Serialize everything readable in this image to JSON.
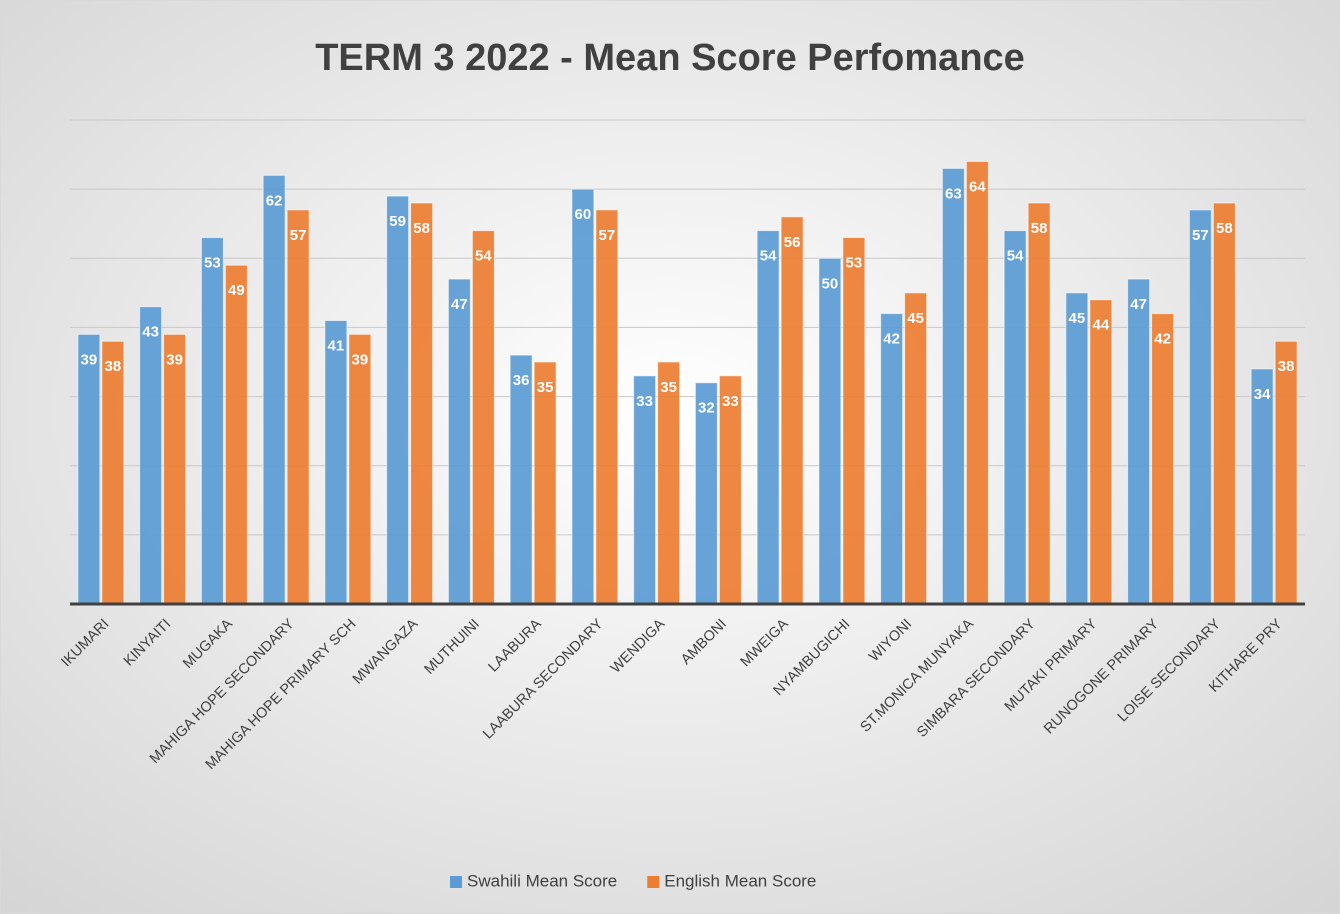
{
  "chart_data": {
    "type": "bar",
    "title": "TERM 3 2022 -  Mean Score Perfomance",
    "categories": [
      "IKUMARI",
      "KINYAITI",
      "MUGAKA",
      "MAHIGA HOPE SECONDARY",
      "MAHIGA HOPE PRIMARY SCH",
      "MWANGAZA",
      "MUTHUINI",
      "LAABURA",
      "LAABURA SECONDARY",
      "WENDIGA",
      "AMBONI",
      "MWEIGA",
      "NYAMBUGICHI",
      "WIYONI",
      "ST.MONICA MUNYAKA",
      "SIMBARA SECONDARY",
      "MUTAKI PRIMARY",
      "RUNOGONE PRIMARY",
      "LOISE SECONDARY",
      "KITHARE PRY"
    ],
    "series": [
      {
        "name": "Swahili Mean Score",
        "color": "#5b9bd5",
        "values": [
          39,
          43,
          53,
          62,
          41,
          59,
          47,
          36,
          60,
          33,
          32,
          54,
          50,
          42,
          63,
          54,
          45,
          47,
          57,
          34
        ]
      },
      {
        "name": "English Mean Score",
        "color": "#ed7d31",
        "values": [
          38,
          39,
          49,
          57,
          39,
          58,
          54,
          35,
          57,
          35,
          33,
          56,
          53,
          45,
          64,
          58,
          44,
          42,
          58,
          38
        ]
      }
    ],
    "ylim": [
      0,
      70
    ],
    "yticks": [
      0,
      10,
      20,
      30,
      40,
      50,
      60,
      70
    ],
    "grid": true,
    "legend": "bottom"
  }
}
